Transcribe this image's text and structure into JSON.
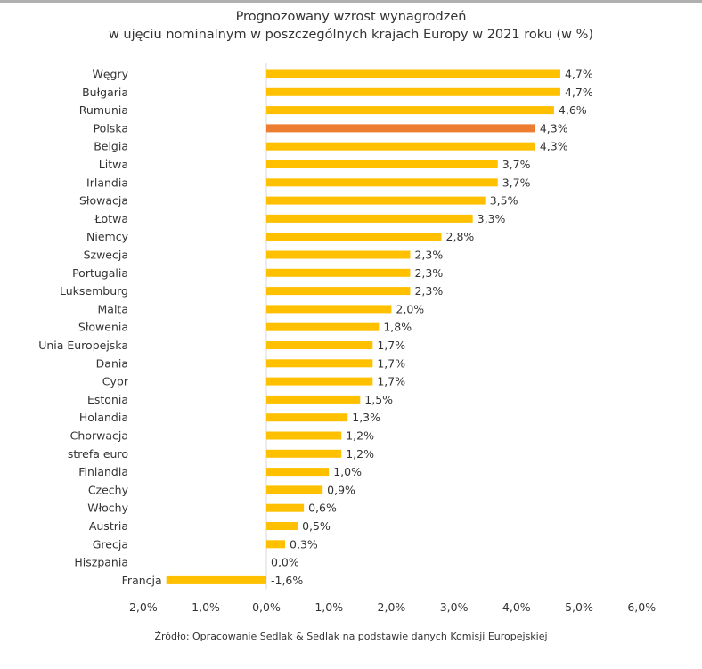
{
  "chart_data": {
    "type": "bar",
    "orientation": "horizontal",
    "title": "Prognozowany wzrost wynagrodzeń",
    "subtitle": "w ujęciu nominalnym w poszczególnych krajach Europy w 2021 roku (w %)",
    "categories": [
      "Węgry",
      "Bułgaria",
      "Rumunia",
      "Polska",
      "Belgia",
      "Litwa",
      "Irlandia",
      "Słowacja",
      "Łotwa",
      "Niemcy",
      "Szwecja",
      "Portugalia",
      "Luksemburg",
      "Malta",
      "Słowenia",
      "Unia Europejska",
      "Dania",
      "Cypr",
      "Estonia",
      "Holandia",
      "Chorwacja",
      "strefa euro",
      "Finlandia",
      "Czechy",
      "Włochy",
      "Austria",
      "Grecja",
      "Hiszpania",
      "Francja"
    ],
    "values": [
      4.7,
      4.7,
      4.6,
      4.3,
      4.3,
      3.7,
      3.7,
      3.5,
      3.3,
      2.8,
      2.3,
      2.3,
      2.3,
      2.0,
      1.8,
      1.7,
      1.7,
      1.7,
      1.5,
      1.3,
      1.2,
      1.2,
      1.0,
      0.9,
      0.6,
      0.5,
      0.3,
      0.0,
      -1.6
    ],
    "value_labels": [
      "4,7%",
      "4,7%",
      "4,6%",
      "4,3%",
      "4,3%",
      "3,7%",
      "3,7%",
      "3,5%",
      "3,3%",
      "2,8%",
      "2,3%",
      "2,3%",
      "2,3%",
      "2,0%",
      "1,8%",
      "1,7%",
      "1,7%",
      "1,7%",
      "1,5%",
      "1,3%",
      "1,2%",
      "1,2%",
      "1,0%",
      "0,9%",
      "0,6%",
      "0,5%",
      "0,3%",
      "0,0%",
      "-1,6%"
    ],
    "highlight": "Polska",
    "xlim": [
      -2.0,
      6.0
    ],
    "xticks": [
      -2,
      -1,
      0,
      1,
      2,
      3,
      4,
      5,
      6
    ],
    "xtick_labels": [
      "-2,0%",
      "-1,0%",
      "0,0%",
      "1,0%",
      "2,0%",
      "3,0%",
      "4,0%",
      "5,0%",
      "6,0%"
    ],
    "xlabel": "",
    "ylabel": "",
    "grid": false,
    "legend": "none"
  },
  "colors": {
    "bar": "#FFC000",
    "highlight": "#ED7D31",
    "axis": "#D9D9D9",
    "text": "#333333"
  },
  "source": "Źródło: Opracowanie Sedlak & Sedlak na podstawie danych Komisji Europejskiej"
}
